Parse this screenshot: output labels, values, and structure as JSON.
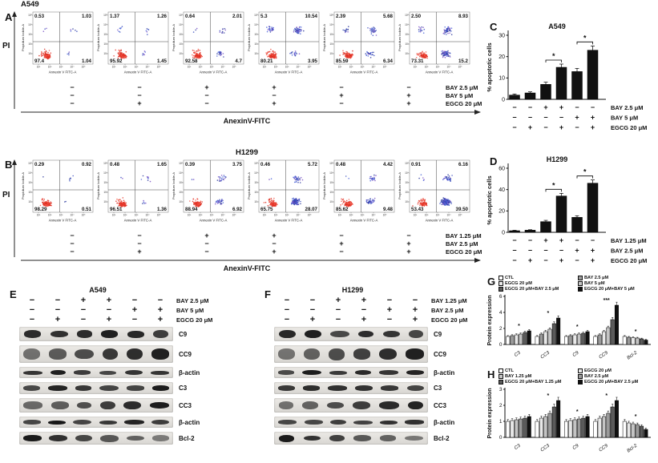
{
  "labels": {
    "A": "A",
    "B": "B",
    "C": "C",
    "D": "D",
    "E": "E",
    "F": "F",
    "G": "G",
    "H": "H"
  },
  "flow_panels": [
    {
      "id": "A",
      "title": "A549",
      "axis_y": "PI",
      "axis_x": "AnexinV-FITC",
      "plot_xlabel": "Annexin V FITC-A",
      "plot_ylabel": "Propidium Iodide-A",
      "ticks": [
        "10⁵",
        "10⁴",
        "10³",
        "10²",
        "10¹"
      ],
      "xticks": [
        "10¹",
        "10²",
        "10³",
        "10⁴",
        "10⁵"
      ],
      "plots": [
        {
          "ul": "0.53",
          "ur": "1.03",
          "ll": "97.4",
          "lr": "1.04"
        },
        {
          "ul": "1.37",
          "ur": "1.26",
          "ll": "95.92",
          "lr": "1.45"
        },
        {
          "ul": "0.64",
          "ur": "2.01",
          "ll": "92.58",
          "lr": "4.7"
        },
        {
          "ul": "5.3",
          "ur": "10.54",
          "ll": "80.21",
          "lr": "3.95"
        },
        {
          "ul": "2.39",
          "ur": "5.68",
          "ll": "85.59",
          "lr": "6.34"
        },
        {
          "ul": "2.50",
          "ur": "8.93",
          "ll": "73.31",
          "lr": "15.2"
        }
      ],
      "treatments": [
        {
          "label": "BAY 2.5 μM",
          "signs": [
            "−",
            "−",
            "+",
            "+",
            "−",
            "−"
          ]
        },
        {
          "label": "BAY 5 μM",
          "signs": [
            "−",
            "−",
            "−",
            "−",
            "+",
            "+"
          ]
        },
        {
          "label": "EGCG 20 μM",
          "signs": [
            "−",
            "+",
            "−",
            "+",
            "−",
            "+"
          ]
        }
      ]
    },
    {
      "id": "B",
      "title": "H1299",
      "axis_y": "PI",
      "axis_x": "AnexinV-FITC",
      "plot_xlabel": "Annexin V FITC-A",
      "plot_ylabel": "Propidium Iodide-A",
      "ticks": [
        "10⁵",
        "10⁴",
        "10³",
        "10²",
        "10¹"
      ],
      "xticks": [
        "10¹",
        "10²",
        "10³",
        "10⁴",
        "10⁵"
      ],
      "plots": [
        {
          "ul": "0.29",
          "ur": "0.92",
          "ll": "98.29",
          "lr": "0.51"
        },
        {
          "ul": "0.48",
          "ur": "1.65",
          "ll": "96.51",
          "lr": "1.36"
        },
        {
          "ul": "0.39",
          "ur": "3.75",
          "ll": "88.94",
          "lr": "6.92"
        },
        {
          "ul": "0.46",
          "ur": "5.72",
          "ll": "65.75",
          "lr": "28.07"
        },
        {
          "ul": "0.48",
          "ur": "4.42",
          "ll": "85.62",
          "lr": "9.48"
        },
        {
          "ul": "0.91",
          "ur": "6.16",
          "ll": "53.43",
          "lr": "39.50"
        }
      ],
      "treatments": [
        {
          "label": "BAY 1.25 μM",
          "signs": [
            "−",
            "−",
            "+",
            "+",
            "−",
            "−"
          ]
        },
        {
          "label": "BAY 2.5 μM",
          "signs": [
            "−",
            "−",
            "−",
            "−",
            "+",
            "+"
          ]
        },
        {
          "label": "EGCG 20 μM",
          "signs": [
            "−",
            "+",
            "−",
            "+",
            "−",
            "+"
          ]
        }
      ]
    }
  ],
  "chart_data": [
    {
      "id": "C",
      "type": "bar",
      "title": "A549",
      "ylabel": "% apoptotic cells",
      "ylim": [
        0,
        30
      ],
      "yticks": [
        0,
        10,
        20,
        30
      ],
      "values": [
        2,
        3,
        7,
        15,
        13,
        23
      ],
      "errors": [
        0.5,
        0.5,
        1,
        1.5,
        1.5,
        2
      ],
      "bar_color": "#111111",
      "treatments": [
        {
          "label": "BAY 2.5 μM",
          "signs": [
            "−",
            "−",
            "+",
            "+",
            "−",
            "−"
          ]
        },
        {
          "label": "BAY 5 μM",
          "signs": [
            "−",
            "−",
            "−",
            "−",
            "+",
            "+"
          ]
        },
        {
          "label": "EGCG 20 μM",
          "signs": [
            "−",
            "+",
            "−",
            "+",
            "−",
            "+"
          ]
        }
      ],
      "brackets": [
        {
          "from": 2,
          "to": 3,
          "label": "*"
        },
        {
          "from": 4,
          "to": 5,
          "label": "*"
        }
      ]
    },
    {
      "id": "D",
      "type": "bar",
      "title": "H1299",
      "ylabel": "% apoptotic cells",
      "ylim": [
        0,
        60
      ],
      "yticks": [
        0,
        20,
        40,
        60
      ],
      "values": [
        1.5,
        2,
        10,
        34,
        14,
        46
      ],
      "errors": [
        0.4,
        0.4,
        1.2,
        2.5,
        1.5,
        3
      ],
      "bar_color": "#111111",
      "treatments": [
        {
          "label": "BAY 1.25 μM",
          "signs": [
            "−",
            "−",
            "+",
            "+",
            "−",
            "−"
          ]
        },
        {
          "label": "BAY 2.5 μM",
          "signs": [
            "−",
            "−",
            "−",
            "−",
            "+",
            "+"
          ]
        },
        {
          "label": "EGCG 20 μM",
          "signs": [
            "−",
            "+",
            "−",
            "+",
            "−",
            "+"
          ]
        }
      ],
      "brackets": [
        {
          "from": 2,
          "to": 3,
          "label": "*"
        },
        {
          "from": 4,
          "to": 5,
          "label": "*"
        }
      ]
    },
    {
      "id": "G",
      "type": "bar",
      "title": "A549",
      "ylabel": "Protein expression",
      "ylim": [
        0,
        6
      ],
      "yticks": [
        0,
        2,
        4,
        6
      ],
      "categories": [
        "C3",
        "CC3",
        "C9",
        "CC9",
        "Bcl-2"
      ],
      "series": [
        {
          "name": "CTL",
          "color": "#ffffff",
          "values": [
            1,
            1,
            1,
            1,
            1
          ]
        },
        {
          "name": "BAY 2.5 μM",
          "color": "#9a9a9a",
          "values": [
            1.1,
            1.3,
            1.1,
            1.2,
            0.9
          ]
        },
        {
          "name": "EGCG 20 μM",
          "color": "#e8e8e8",
          "values": [
            1.2,
            1.6,
            1.2,
            1.6,
            0.85
          ]
        },
        {
          "name": "BAY 5 μM",
          "color": "#c4c4c4",
          "values": [
            1.3,
            1.9,
            1.3,
            2.1,
            0.8
          ]
        },
        {
          "name": "EGCG 20 μM+BAY 2.5 μM",
          "color": "#5a5a5a",
          "values": [
            1.5,
            2.6,
            1.4,
            3.1,
            0.7
          ]
        },
        {
          "name": "EGCG 20 μM+BAY 5 μM",
          "color": "#111111",
          "values": [
            1.7,
            3.3,
            1.6,
            4.9,
            0.55
          ]
        }
      ],
      "sig": [
        {
          "cat": 0,
          "label": "*"
        },
        {
          "cat": 1,
          "label": "*"
        },
        {
          "cat": 2,
          "label": "*"
        },
        {
          "cat": 3,
          "label": "***"
        },
        {
          "cat": 4,
          "label": "*"
        }
      ]
    },
    {
      "id": "H",
      "type": "bar",
      "title": "H1299",
      "ylabel": "Protein expression",
      "ylim": [
        0,
        3
      ],
      "yticks": [
        0,
        1,
        2,
        3
      ],
      "categories": [
        "C3",
        "CC3",
        "C9",
        "CC9",
        "Bcl-2"
      ],
      "series": [
        {
          "name": "CTL",
          "color": "#ffffff",
          "values": [
            1,
            1,
            1,
            1,
            1
          ]
        },
        {
          "name": "EGCG 20 μM",
          "color": "#e8e8e8",
          "values": [
            1.05,
            1.2,
            1.05,
            1.2,
            0.9
          ]
        },
        {
          "name": "BAY 1.25 μM",
          "color": "#c4c4c4",
          "values": [
            1.1,
            1.3,
            1.1,
            1.3,
            0.85
          ]
        },
        {
          "name": "BAY 2.5 μM",
          "color": "#9a9a9a",
          "values": [
            1.15,
            1.5,
            1.15,
            1.5,
            0.8
          ]
        },
        {
          "name": "EGCG 20 μM+BAY 1.25 μM",
          "color": "#5a5a5a",
          "values": [
            1.2,
            1.9,
            1.2,
            1.9,
            0.7
          ]
        },
        {
          "name": "EGCG 20 μM+BAY 2.5 μM",
          "color": "#111111",
          "values": [
            1.3,
            2.3,
            1.3,
            2.3,
            0.5
          ]
        }
      ],
      "sig": [
        {
          "cat": 1,
          "label": "*"
        },
        {
          "cat": 2,
          "label": "*"
        },
        {
          "cat": 3,
          "label": "*"
        },
        {
          "cat": 4,
          "label": "*"
        }
      ]
    }
  ],
  "blot_panels": [
    {
      "id": "E",
      "title": "A549",
      "treatments": [
        {
          "label": "BAY 2.5 μM",
          "signs": [
            "−",
            "−",
            "+",
            "+",
            "−",
            "−"
          ]
        },
        {
          "label": "BAY 5 μM",
          "signs": [
            "−",
            "−",
            "−",
            "−",
            "+",
            "+"
          ]
        },
        {
          "label": "EGCG 20 μM",
          "signs": [
            "−",
            "+",
            "−",
            "+",
            "−",
            "+"
          ]
        }
      ],
      "bands": [
        "C9",
        "CC9",
        "β-actin",
        "C3",
        "CC3",
        "β-actin",
        "Bcl-2"
      ]
    },
    {
      "id": "F",
      "title": "H1299",
      "treatments": [
        {
          "label": "BAY 1.25 μM",
          "signs": [
            "−",
            "−",
            "+",
            "+",
            "−",
            "−"
          ]
        },
        {
          "label": "BAY 2.5 μM",
          "signs": [
            "−",
            "−",
            "−",
            "−",
            "+",
            "+"
          ]
        },
        {
          "label": "EGCG 20 μM",
          "signs": [
            "−",
            "+",
            "−",
            "+",
            "−",
            "+"
          ]
        }
      ],
      "bands": [
        "C9",
        "CC9",
        "β-actin",
        "C3",
        "CC3",
        "β-actin",
        "Bcl-2"
      ]
    }
  ]
}
